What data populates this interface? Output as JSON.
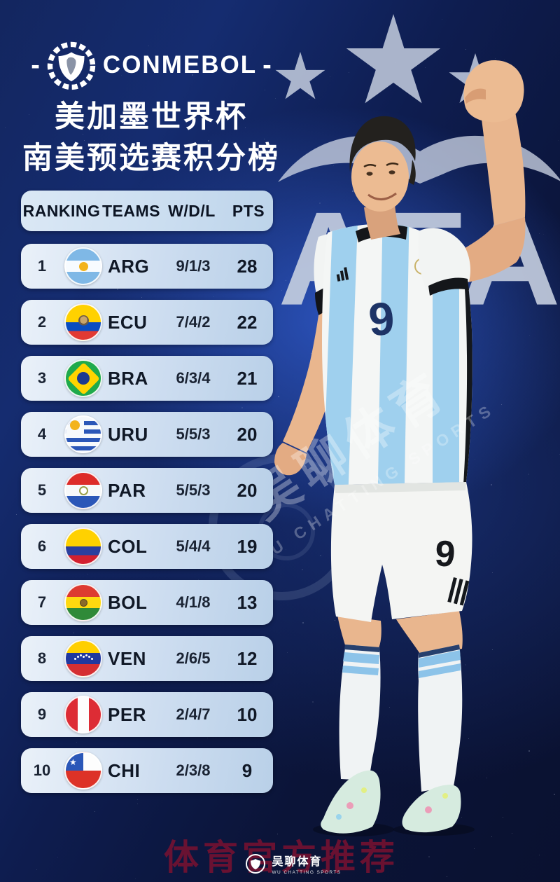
{
  "header": {
    "dash_left": "-",
    "org": "CONMEBOL",
    "dash_right": "-",
    "title_line1": "美加墨世界杯",
    "title_line2": "南美预选赛积分榜"
  },
  "chart_data": {
    "type": "table",
    "title": "美加墨世界杯 南美预选赛积分榜",
    "columns": [
      "RANKING",
      "TEAMS",
      "W/D/L",
      "PTS"
    ],
    "rows": [
      {
        "rank": "1",
        "team": "ARG",
        "wdl": "9/1/3",
        "pts": "28"
      },
      {
        "rank": "2",
        "team": "ECU",
        "wdl": "7/4/2",
        "pts": "22"
      },
      {
        "rank": "3",
        "team": "BRA",
        "wdl": "6/3/4",
        "pts": "21"
      },
      {
        "rank": "4",
        "team": "URU",
        "wdl": "5/5/3",
        "pts": "20"
      },
      {
        "rank": "5",
        "team": "PAR",
        "wdl": "5/5/3",
        "pts": "20"
      },
      {
        "rank": "6",
        "team": "COL",
        "wdl": "5/4/4",
        "pts": "19"
      },
      {
        "rank": "7",
        "team": "BOL",
        "wdl": "4/1/8",
        "pts": "13"
      },
      {
        "rank": "8",
        "team": "VEN",
        "wdl": "2/6/5",
        "pts": "12"
      },
      {
        "rank": "9",
        "team": "PER",
        "wdl": "2/4/7",
        "pts": "10"
      },
      {
        "rank": "10",
        "team": "CHI",
        "wdl": "2/3/8",
        "pts": "9"
      }
    ]
  },
  "player": {
    "jersey_number": "9",
    "shorts_number": "9"
  },
  "watermarks": {
    "afa": "AFA",
    "diagonal_cn": "吴聊体育",
    "diagonal_en": "WU CHATTING SPORTS",
    "bottom_red": "体育官方推荐",
    "footer_cn": "吴聊体育",
    "footer_en": "WU CHATTING SPORTS"
  },
  "colors": {
    "background_navy": "#0b1438",
    "accent_blue": "#2d56c2",
    "row_bg": "#cdddf0",
    "star_gray": "#b3bdd2",
    "jersey_sky": "#9fd0ee",
    "red_watermark": "#7e1130"
  }
}
